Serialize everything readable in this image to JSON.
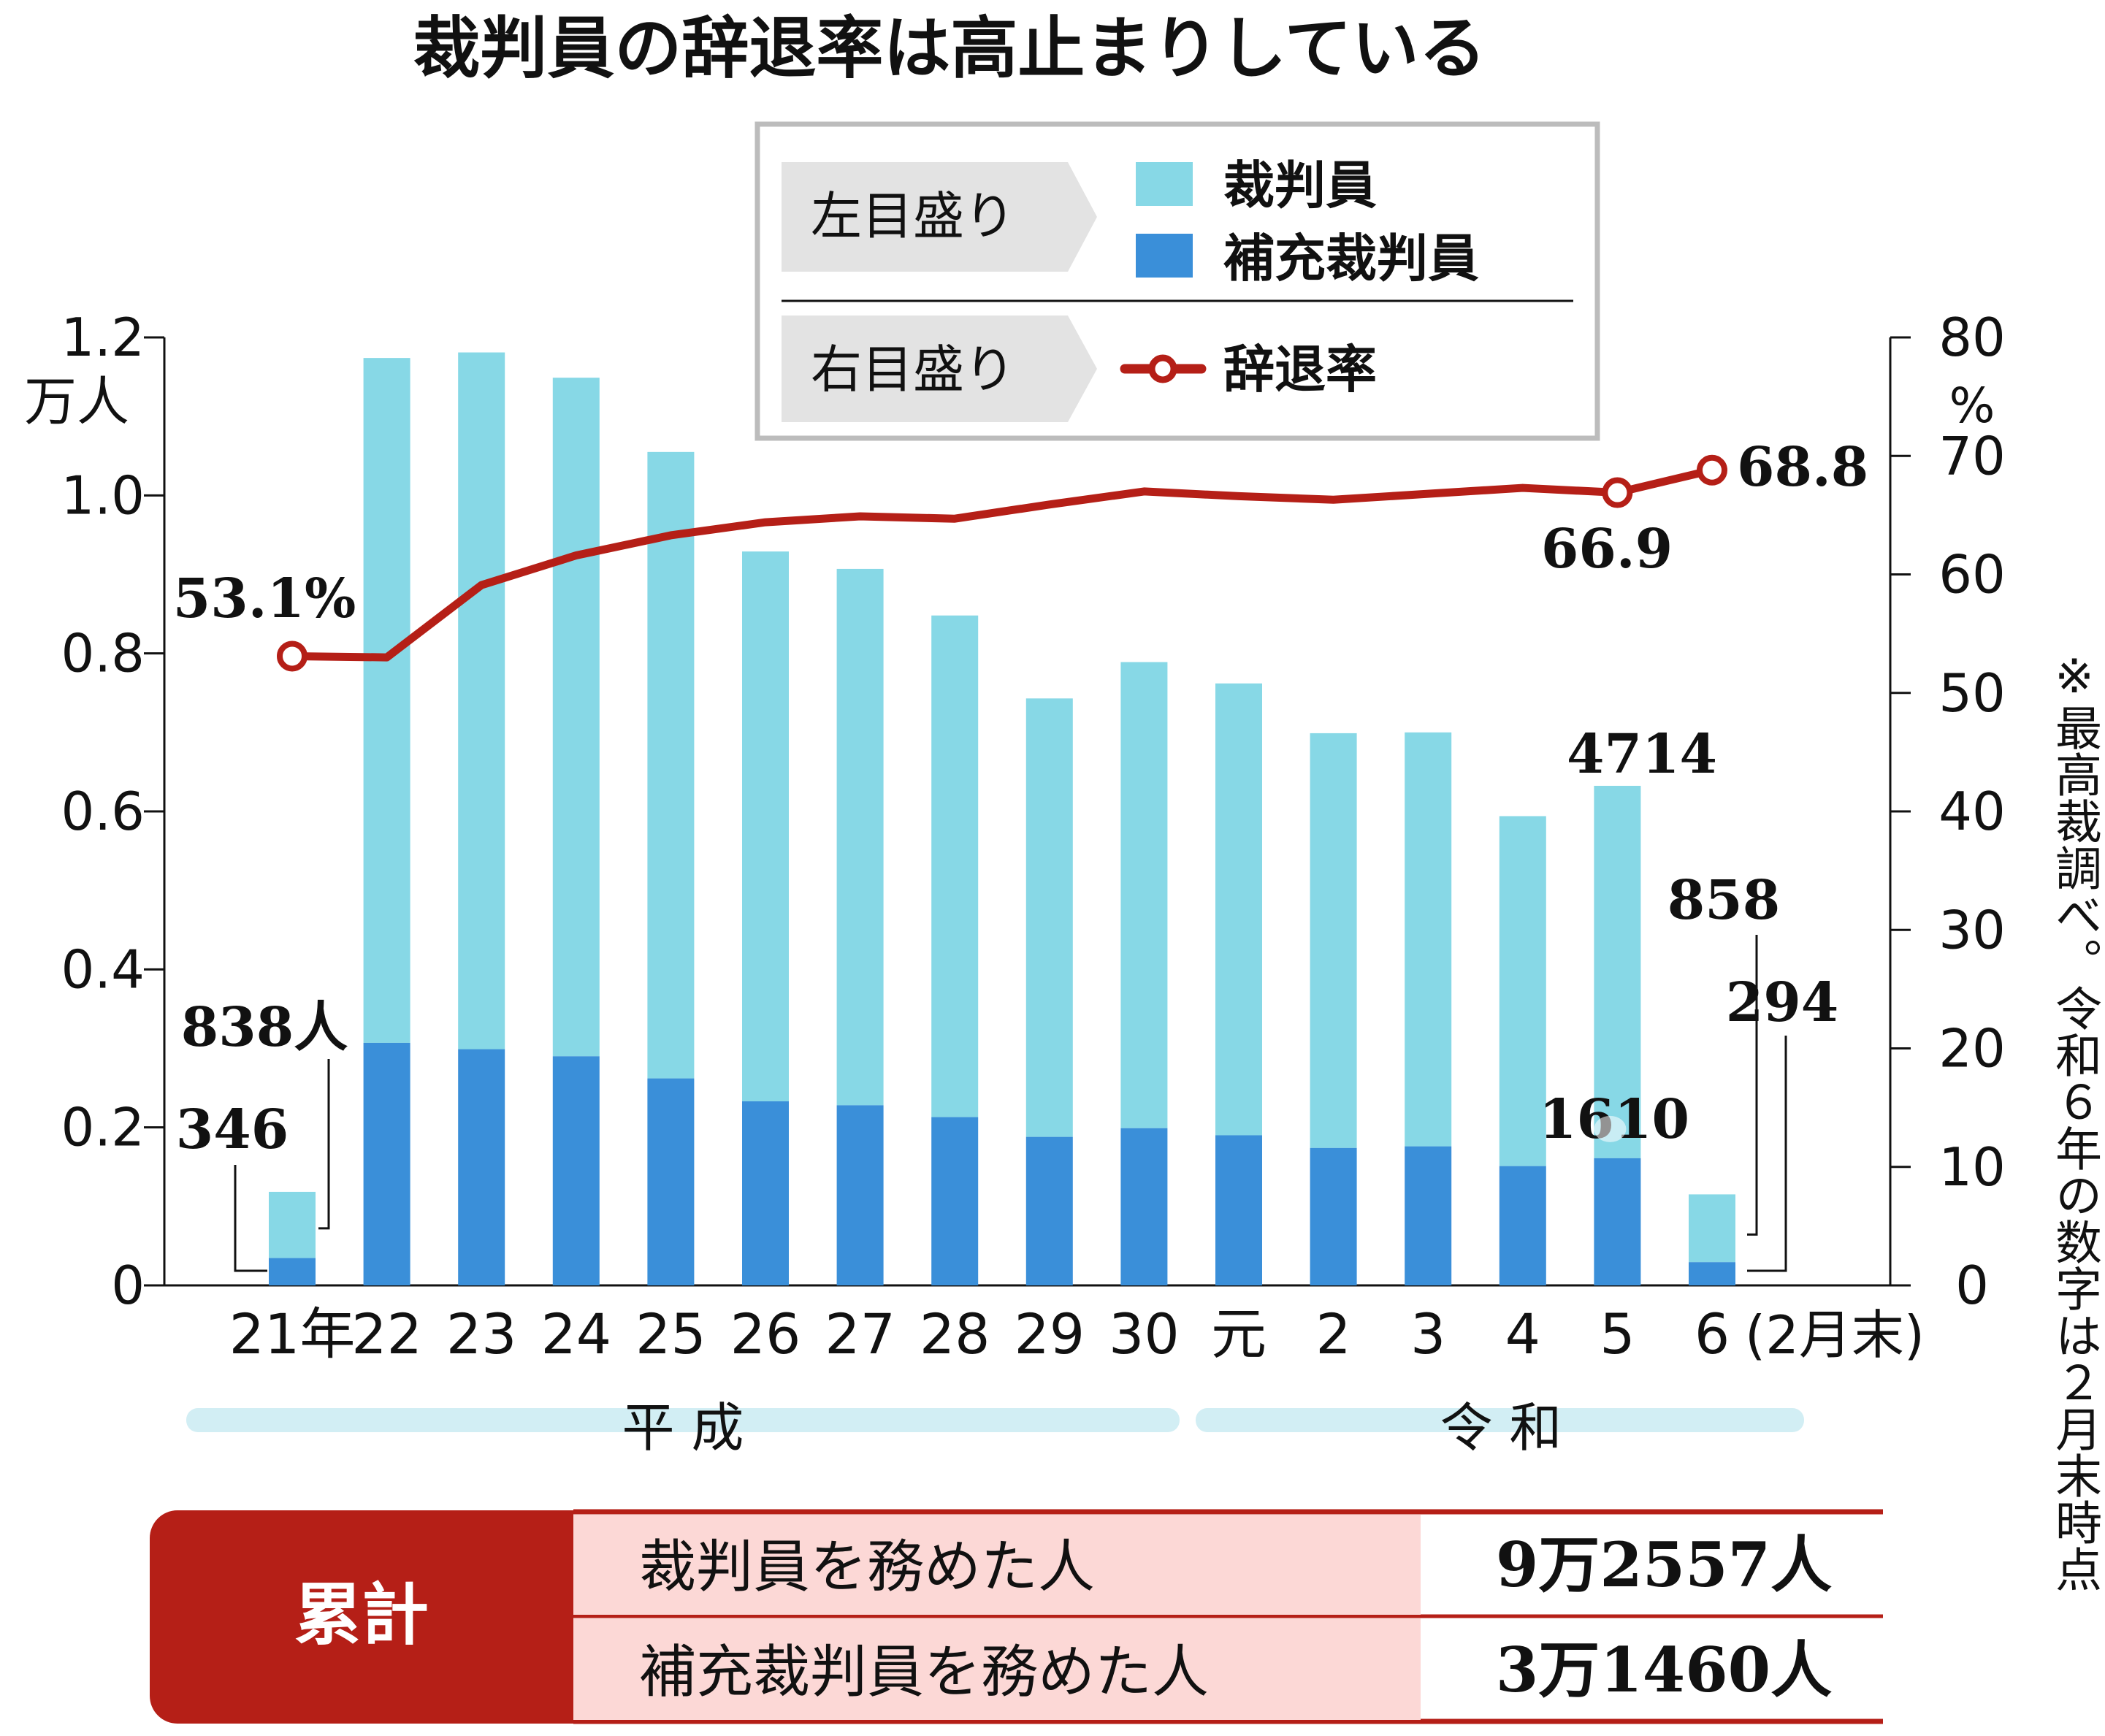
{
  "colors": {
    "juror": "#87d8e6",
    "alternate": "#3a8fd9",
    "rate_line": "#b51f17",
    "era_bar": "#d2eef4",
    "legend_border": "#bcbcbc",
    "legend_tag": "#e3e3e3",
    "summary_red": "#b51f17",
    "summary_pink": "#fcd8d6"
  },
  "legend": {
    "left_scale": "左目盛り",
    "right_scale": "右目盛り",
    "juror": "裁判員",
    "alternate": "補充裁判員",
    "rate": "辞退率"
  },
  "eras": {
    "heisei": "平 成",
    "reiwa": "令 和"
  },
  "source_note": "※最高裁調べ。令和６年の数字は２月末時点",
  "summary": {
    "label": "累計",
    "rows": [
      {
        "text": "裁判員を務めた人",
        "value": "9万2557人"
      },
      {
        "text": "補充裁判員を務めた人",
        "value": "3万1460人"
      }
    ]
  },
  "chart_data": {
    "type": "bar",
    "title": "裁判員の辞退率は高止まりしている",
    "categories": [
      "21年",
      "22",
      "23",
      "24",
      "25",
      "26",
      "27",
      "28",
      "29",
      "30",
      "元",
      "2",
      "3",
      "4",
      "5",
      "6"
    ],
    "category_suffix": "(2月末)",
    "stacked": true,
    "series": [
      {
        "name": "補充裁判員",
        "axis": "left",
        "values": [
          346,
          3070,
          2990,
          2900,
          2620,
          2330,
          2280,
          2130,
          1880,
          1990,
          1900,
          1740,
          1760,
          1510,
          1610,
          294
        ]
      },
      {
        "name": "裁判員",
        "axis": "left",
        "values": [
          838,
          8670,
          8820,
          8590,
          7930,
          6960,
          6790,
          6350,
          5550,
          5900,
          5720,
          5250,
          5240,
          4430,
          4714,
          858
        ]
      },
      {
        "name": "辞退率",
        "axis": "right",
        "type": "line",
        "values": [
          53.1,
          53.0,
          59.1,
          61.6,
          63.3,
          64.4,
          64.9,
          64.7,
          65.9,
          67.0,
          66.6,
          66.3,
          66.8,
          67.3,
          66.9,
          68.8
        ]
      }
    ],
    "left_axis": {
      "unit": "万人",
      "ticks": [
        "0",
        "0.2",
        "0.4",
        "0.6",
        "0.8",
        "1.0",
        "1.2"
      ],
      "ylim": [
        0,
        12000
      ]
    },
    "right_axis": {
      "unit": "%",
      "ticks": [
        "0",
        "10",
        "20",
        "30",
        "40",
        "50",
        "60",
        "70",
        "80"
      ],
      "ylim": [
        0,
        80
      ]
    },
    "annotations": {
      "first_alternate": "346",
      "first_juror": "838人",
      "first_rate": "53.1%",
      "r5_rate": "66.9",
      "r5_juror": "4714",
      "r5_alternate": "1610",
      "r6_rate": "68.8",
      "r6_juror": "858",
      "r6_alternate": "294"
    },
    "grid": false,
    "legend_position": "top-center"
  }
}
